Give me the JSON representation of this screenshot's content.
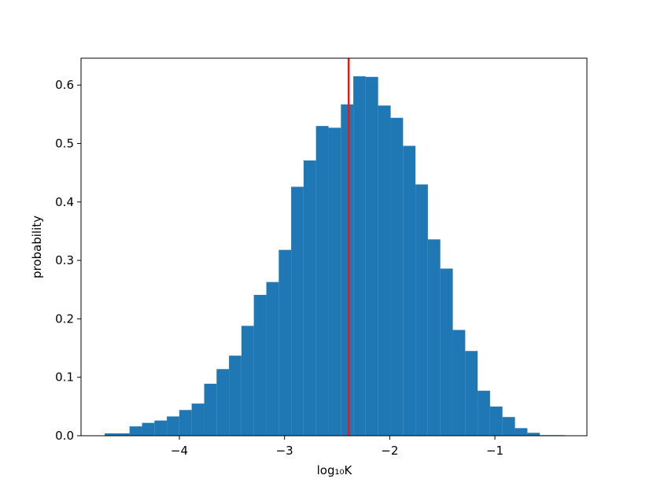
{
  "chart_data": {
    "type": "histogram",
    "xlabel": "log₁₀K",
    "ylabel": "probability",
    "color": "#1f77b4",
    "bins": [
      -4.71,
      -4.592,
      -4.474,
      -4.355,
      -4.237,
      -4.119,
      -4.001,
      -3.883,
      -3.764,
      -3.646,
      -3.528,
      -3.41,
      -3.292,
      -3.173,
      -3.055,
      -2.937,
      -2.819,
      -2.701,
      -2.582,
      -2.464,
      -2.346,
      -2.228,
      -2.11,
      -1.991,
      -1.873,
      -1.755,
      -1.637,
      -1.519,
      -1.4,
      -1.282,
      -1.164,
      -1.046,
      -0.928,
      -0.809,
      -0.691,
      -0.573,
      -0.455,
      -0.337
    ],
    "values": [
      0.004,
      0.004,
      0.016,
      0.022,
      0.026,
      0.033,
      0.044,
      0.055,
      0.089,
      0.114,
      0.137,
      0.188,
      0.241,
      0.263,
      0.318,
      0.426,
      0.471,
      0.53,
      0.527,
      0.567,
      0.615,
      0.614,
      0.565,
      0.544,
      0.496,
      0.43,
      0.336,
      0.286,
      0.181,
      0.145,
      0.077,
      0.05,
      0.032,
      0.013,
      0.005,
      0.001,
      0.001
    ],
    "vline": {
      "value": -2.39,
      "color": "#e8191c"
    },
    "xlim": [
      -4.935,
      -0.125
    ],
    "ylim": [
      0,
      0.646
    ],
    "xticks": [
      {
        "value": -4,
        "label": "−4"
      },
      {
        "value": -3,
        "label": "−3"
      },
      {
        "value": -2,
        "label": "−2"
      },
      {
        "value": -1,
        "label": "−1"
      }
    ],
    "yticks": [
      {
        "value": 0,
        "label": "0.0"
      },
      0.1,
      0.2,
      0.3,
      0.4,
      0.5,
      0.6
    ]
  }
}
